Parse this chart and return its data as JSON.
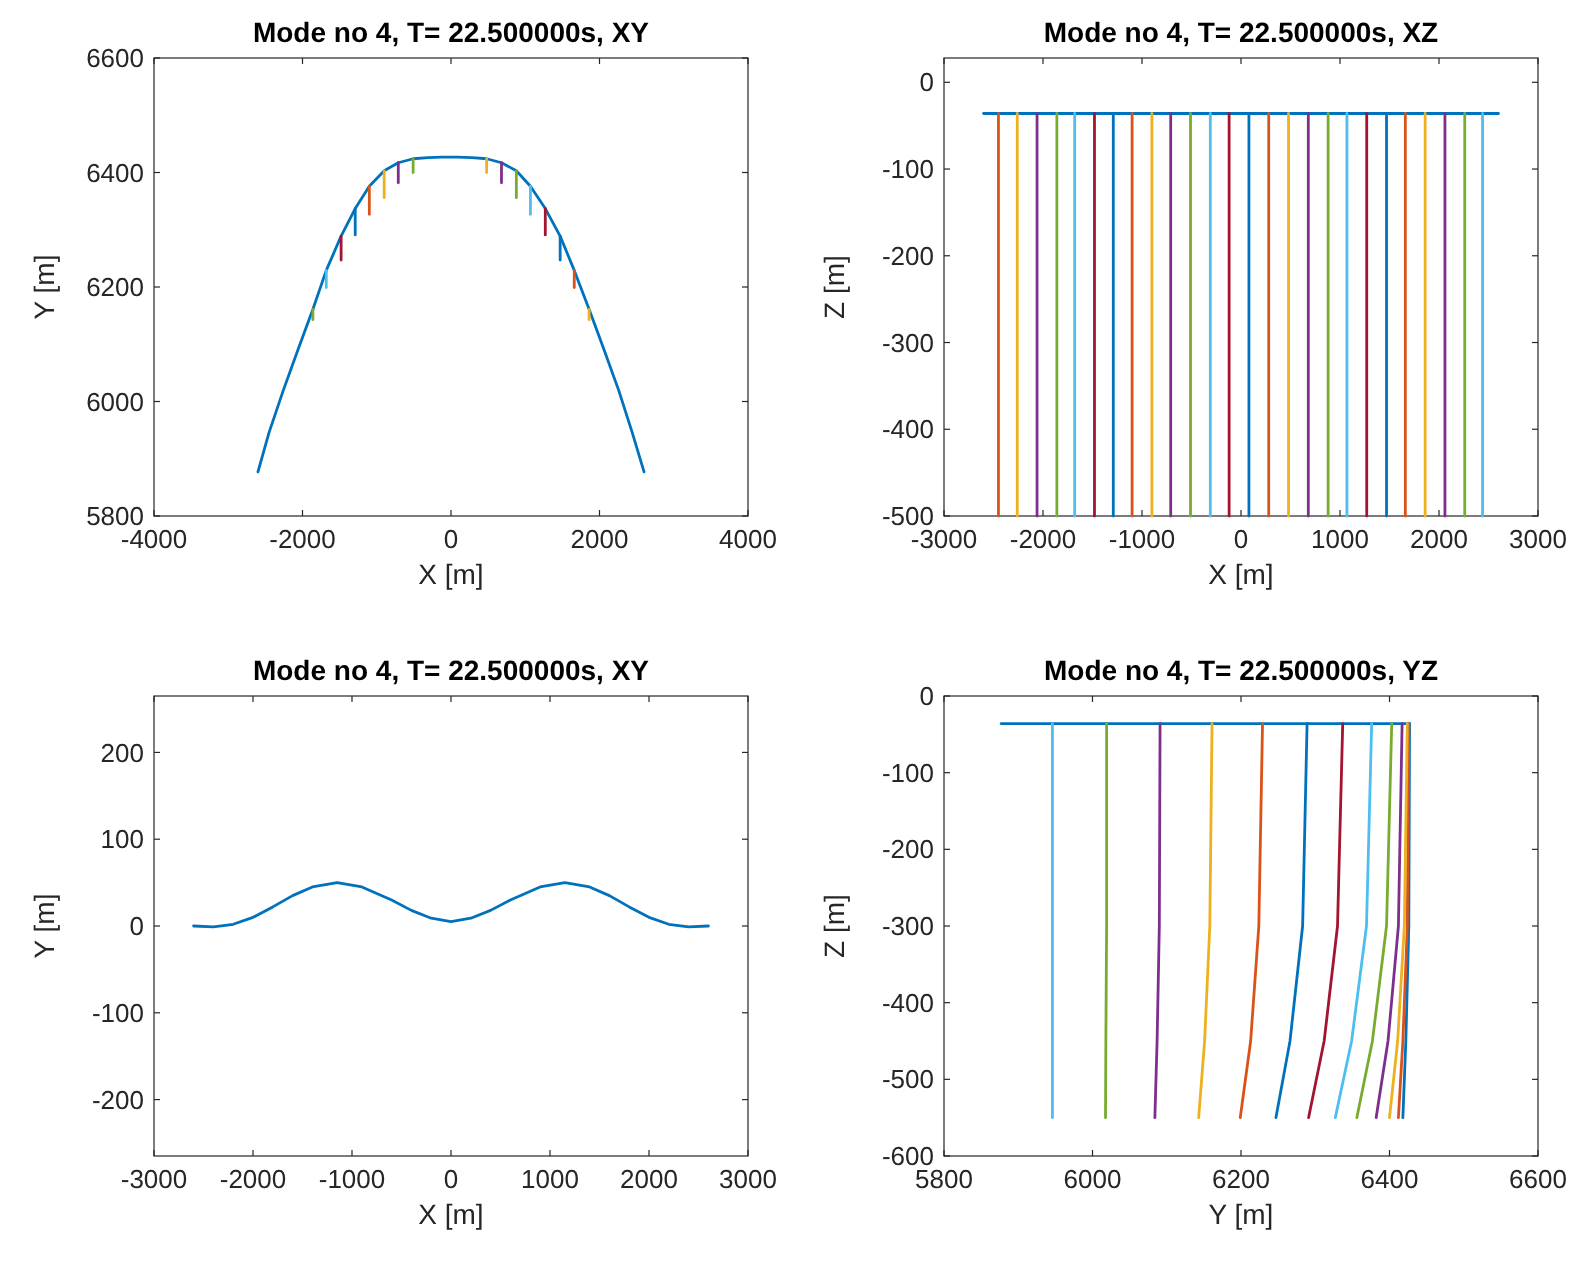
{
  "chart_data": [
    {
      "type": "line",
      "title": "Mode no 4, T= 22.500000s, XY",
      "xlabel": "X [m]",
      "ylabel": "Y [m]",
      "xlim": [
        -4000,
        4000
      ],
      "ylim": [
        5800,
        6600
      ],
      "xticks": [
        -4000,
        -2000,
        0,
        2000,
        4000
      ],
      "yticks": [
        5800,
        6000,
        6200,
        6400,
        6600
      ],
      "series": [
        {
          "color": "#0072bd",
          "x": [
            -2600,
            -2450,
            -2260,
            -2060,
            -1860,
            -1680,
            -1480,
            -1290,
            -1100,
            -900,
            -710,
            -510,
            -310,
            -120,
            80,
            280,
            480,
            680,
            880,
            1070,
            1270,
            1470,
            1660,
            1860,
            2060,
            2260,
            2440,
            2600
          ],
          "values": [
            5877,
            5946,
            6019,
            6091,
            6161,
            6229,
            6289,
            6337,
            6376,
            6403,
            6417,
            6424,
            6426,
            6427,
            6427,
            6426,
            6424,
            6417,
            6403,
            6376,
            6337,
            6289,
            6229,
            6161,
            6091,
            6019,
            5946,
            5877
          ]
        },
        {
          "color": "#77ac30",
          "x": [
            -1860,
            -1860
          ],
          "values": [
            6161,
            6143
          ]
        },
        {
          "color": "#4dbeee",
          "x": [
            -1680,
            -1680
          ],
          "values": [
            6229,
            6199
          ]
        },
        {
          "color": "#a2142f",
          "x": [
            -1480,
            -1480
          ],
          "values": [
            6289,
            6247
          ]
        },
        {
          "color": "#0072bd",
          "x": [
            -1290,
            -1290
          ],
          "values": [
            6337,
            6291
          ]
        },
        {
          "color": "#d95319",
          "x": [
            -1100,
            -1100
          ],
          "values": [
            6376,
            6327
          ]
        },
        {
          "color": "#edb120",
          "x": [
            -900,
            -900
          ],
          "values": [
            6403,
            6356
          ]
        },
        {
          "color": "#7e2f8e",
          "x": [
            -710,
            -710
          ],
          "values": [
            6417,
            6382
          ]
        },
        {
          "color": "#77ac30",
          "x": [
            -510,
            -510
          ],
          "values": [
            6424,
            6400
          ]
        },
        {
          "color": "#edb120",
          "x": [
            480,
            480
          ],
          "values": [
            6424,
            6400
          ]
        },
        {
          "color": "#7e2f8e",
          "x": [
            680,
            680
          ],
          "values": [
            6417,
            6382
          ]
        },
        {
          "color": "#77ac30",
          "x": [
            880,
            880
          ],
          "values": [
            6403,
            6356
          ]
        },
        {
          "color": "#4dbeee",
          "x": [
            1070,
            1070
          ],
          "values": [
            6376,
            6327
          ]
        },
        {
          "color": "#a2142f",
          "x": [
            1270,
            1270
          ],
          "values": [
            6337,
            6291
          ]
        },
        {
          "color": "#0072bd",
          "x": [
            1470,
            1470
          ],
          "values": [
            6289,
            6247
          ]
        },
        {
          "color": "#d95319",
          "x": [
            1660,
            1660
          ],
          "values": [
            6229,
            6199
          ]
        },
        {
          "color": "#edb120",
          "x": [
            1860,
            1860
          ],
          "values": [
            6161,
            6143
          ]
        }
      ]
    },
    {
      "type": "line",
      "title": "Mode no 4, T= 22.500000s, XZ",
      "xlabel": "X [m]",
      "ylabel": "Z [m]",
      "xlim": [
        -3000,
        3000
      ],
      "ylim": [
        -500,
        28
      ],
      "xticks": [
        -3000,
        -2000,
        -1000,
        0,
        1000,
        2000,
        3000
      ],
      "yticks": [
        -500,
        -400,
        -300,
        -200,
        -100,
        0
      ],
      "series": [
        {
          "color": "#0072bd",
          "x": [
            -2600,
            2600
          ],
          "values": [
            -36,
            -36
          ]
        },
        {
          "color": "#d95319",
          "x": [
            -2450,
            -2450
          ],
          "values": [
            -36,
            -500
          ]
        },
        {
          "color": "#edb120",
          "x": [
            -2260,
            -2260
          ],
          "values": [
            -36,
            -500
          ]
        },
        {
          "color": "#7e2f8e",
          "x": [
            -2060,
            -2060
          ],
          "values": [
            -36,
            -500
          ]
        },
        {
          "color": "#77ac30",
          "x": [
            -1860,
            -1860
          ],
          "values": [
            -36,
            -500
          ]
        },
        {
          "color": "#4dbeee",
          "x": [
            -1680,
            -1680
          ],
          "values": [
            -36,
            -500
          ]
        },
        {
          "color": "#a2142f",
          "x": [
            -1480,
            -1480
          ],
          "values": [
            -36,
            -500
          ]
        },
        {
          "color": "#0072bd",
          "x": [
            -1290,
            -1290
          ],
          "values": [
            -36,
            -500
          ]
        },
        {
          "color": "#d95319",
          "x": [
            -1100,
            -1100
          ],
          "values": [
            -36,
            -500
          ]
        },
        {
          "color": "#edb120",
          "x": [
            -900,
            -900
          ],
          "values": [
            -36,
            -500
          ]
        },
        {
          "color": "#7e2f8e",
          "x": [
            -710,
            -710
          ],
          "values": [
            -36,
            -500
          ]
        },
        {
          "color": "#77ac30",
          "x": [
            -510,
            -510
          ],
          "values": [
            -36,
            -500
          ]
        },
        {
          "color": "#4dbeee",
          "x": [
            -310,
            -310
          ],
          "values": [
            -36,
            -500
          ]
        },
        {
          "color": "#a2142f",
          "x": [
            -120,
            -120
          ],
          "values": [
            -36,
            -500
          ]
        },
        {
          "color": "#0072bd",
          "x": [
            80,
            80
          ],
          "values": [
            -36,
            -500
          ]
        },
        {
          "color": "#d95319",
          "x": [
            280,
            280
          ],
          "values": [
            -36,
            -500
          ]
        },
        {
          "color": "#edb120",
          "x": [
            480,
            480
          ],
          "values": [
            -36,
            -500
          ]
        },
        {
          "color": "#7e2f8e",
          "x": [
            680,
            680
          ],
          "values": [
            -36,
            -500
          ]
        },
        {
          "color": "#77ac30",
          "x": [
            880,
            880
          ],
          "values": [
            -36,
            -500
          ]
        },
        {
          "color": "#4dbeee",
          "x": [
            1070,
            1070
          ],
          "values": [
            -36,
            -500
          ]
        },
        {
          "color": "#a2142f",
          "x": [
            1270,
            1270
          ],
          "values": [
            -36,
            -500
          ]
        },
        {
          "color": "#0072bd",
          "x": [
            1470,
            1470
          ],
          "values": [
            -36,
            -500
          ]
        },
        {
          "color": "#d95319",
          "x": [
            1660,
            1660
          ],
          "values": [
            -36,
            -500
          ]
        },
        {
          "color": "#edb120",
          "x": [
            1860,
            1860
          ],
          "values": [
            -36,
            -500
          ]
        },
        {
          "color": "#7e2f8e",
          "x": [
            2060,
            2060
          ],
          "values": [
            -36,
            -500
          ]
        },
        {
          "color": "#77ac30",
          "x": [
            2260,
            2260
          ],
          "values": [
            -36,
            -500
          ]
        },
        {
          "color": "#4dbeee",
          "x": [
            2440,
            2440
          ],
          "values": [
            -36,
            -500
          ]
        }
      ]
    },
    {
      "type": "line",
      "title": "Mode no 4, T= 22.500000s, XY",
      "xlabel": "X [m]",
      "ylabel": "Y [m]",
      "xlim": [
        -3000,
        3000
      ],
      "ylim": [
        -265,
        265
      ],
      "xticks": [
        -3000,
        -2000,
        -1000,
        0,
        1000,
        2000,
        3000
      ],
      "yticks": [
        -200,
        -100,
        0,
        100,
        200
      ],
      "series": [
        {
          "color": "#0072bd",
          "x": [
            -2600,
            -2400,
            -2200,
            -2000,
            -1800,
            -1600,
            -1400,
            -1150,
            -900,
            -600,
            -400,
            -200,
            0,
            200,
            400,
            600,
            900,
            1150,
            1400,
            1600,
            1800,
            2000,
            2200,
            2400,
            2600
          ],
          "values": [
            0,
            -1,
            2,
            10,
            22,
            35,
            45,
            50,
            45,
            30,
            18,
            9,
            5,
            9,
            18,
            30,
            45,
            50,
            45,
            35,
            22,
            10,
            2,
            -1,
            0
          ]
        }
      ]
    },
    {
      "type": "line",
      "title": "Mode no 4, T= 22.500000s, YZ",
      "xlabel": "Y [m]",
      "ylabel": "Z [m]",
      "xlim": [
        5800,
        6600
      ],
      "ylim": [
        -600,
        0
      ],
      "xticks": [
        5800,
        6000,
        6200,
        6400,
        6600
      ],
      "yticks": [
        -600,
        -500,
        -400,
        -300,
        -200,
        -100,
        0
      ],
      "series": [
        {
          "color": "#0072bd",
          "x": [
            5877,
            6427
          ],
          "values": [
            -36,
            -36
          ]
        },
        {
          "color": "#0072bd",
          "x": [
            6427,
            6426,
            6422,
            6418
          ],
          "values": [
            -36,
            -300,
            -450,
            -550
          ]
        },
        {
          "color": "#d95319",
          "x": [
            6426,
            6424,
            6418,
            6412
          ],
          "values": [
            -36,
            -300,
            -450,
            -550
          ]
        },
        {
          "color": "#edb120",
          "x": [
            6424,
            6420,
            6411,
            6400
          ],
          "values": [
            -36,
            -300,
            -450,
            -550
          ]
        },
        {
          "color": "#7e2f8e",
          "x": [
            6417,
            6412,
            6398,
            6382
          ],
          "values": [
            -36,
            -300,
            -450,
            -550
          ]
        },
        {
          "color": "#77ac30",
          "x": [
            6403,
            6396,
            6377,
            6356
          ],
          "values": [
            -36,
            -300,
            -450,
            -550
          ]
        },
        {
          "color": "#4dbeee",
          "x": [
            6376,
            6369,
            6349,
            6327
          ],
          "values": [
            -36,
            -300,
            -450,
            -550
          ]
        },
        {
          "color": "#a2142f",
          "x": [
            6337,
            6330,
            6312,
            6291
          ],
          "values": [
            -36,
            -300,
            -450,
            -550
          ]
        },
        {
          "color": "#0072bd",
          "x": [
            6289,
            6283,
            6266,
            6247
          ],
          "values": [
            -36,
            -300,
            -450,
            -550
          ]
        },
        {
          "color": "#d95319",
          "x": [
            6229,
            6224,
            6213,
            6199
          ],
          "values": [
            -36,
            -300,
            -450,
            -550
          ]
        },
        {
          "color": "#edb120",
          "x": [
            6161,
            6158,
            6151,
            6143
          ],
          "values": [
            -36,
            -300,
            -450,
            -550
          ]
        },
        {
          "color": "#7e2f8e",
          "x": [
            6091,
            6090,
            6087,
            6084
          ],
          "values": [
            -36,
            -300,
            -450,
            -550
          ]
        },
        {
          "color": "#77ac30",
          "x": [
            6019,
            6019,
            6018,
            6017.5
          ],
          "values": [
            -36,
            -300,
            -450,
            -550
          ]
        },
        {
          "color": "#4dbeee",
          "x": [
            5946,
            5946,
            5946,
            5946
          ],
          "values": [
            -36,
            -300,
            -450,
            -550
          ]
        }
      ]
    }
  ]
}
